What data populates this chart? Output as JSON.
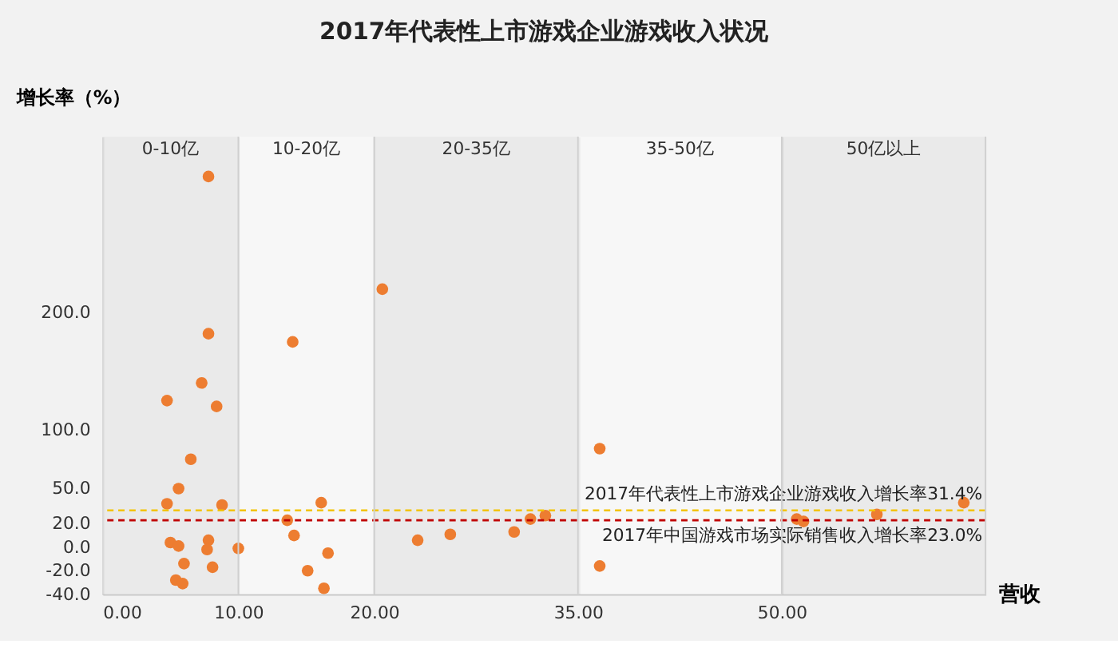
{
  "chart_data": {
    "type": "scatter",
    "title": "2017年代表性上市游戏企业游戏收入状况",
    "xlabel": "营收",
    "ylabel": "增长率（%）",
    "x": [
      7.8,
      7.8,
      4.75,
      7.3,
      8.4,
      6.5,
      5.6,
      4.75,
      8.8,
      14.0,
      16.1,
      13.6,
      14.1,
      20.6,
      5.0,
      5.6,
      7.8,
      7.7,
      10.0,
      6.0,
      8.1,
      5.4,
      5.9,
      16.6,
      15.1,
      16.3,
      36.6,
      63.4,
      57.0,
      51.1,
      51.6,
      31.5,
      32.6,
      30.3,
      25.6,
      23.2,
      36.6
    ],
    "series": [
      {
        "color": "#ed7d31",
        "values": [
          316,
          182,
          125,
          140,
          120,
          75,
          50,
          37,
          36,
          175,
          38,
          23,
          10,
          220,
          4,
          1,
          6,
          -2,
          -1,
          -14,
          -17,
          -28,
          -31,
          -5,
          -20,
          -35,
          84,
          38,
          28,
          24,
          22,
          24,
          27,
          13,
          11,
          6,
          -16
        ]
      }
    ],
    "xlim": [
      0,
      65
    ],
    "xticks": [
      {
        "value": 0,
        "label": "0.00"
      },
      {
        "value": 10,
        "label": "10.00"
      },
      {
        "value": 20,
        "label": "20.00"
      },
      {
        "value": 35,
        "label": "35.00"
      },
      {
        "value": 50,
        "label": "50.00"
      }
    ],
    "ylim": [
      -40,
      350
    ],
    "yticks": [
      {
        "value": -40,
        "label": "-40.0"
      },
      {
        "value": -20,
        "label": "-20.0"
      },
      {
        "value": 0,
        "label": "0.0"
      },
      {
        "value": 20,
        "label": "20.0"
      },
      {
        "value": 50,
        "label": "50.0"
      },
      {
        "value": 100,
        "label": "100.0"
      },
      {
        "value": 200,
        "label": "200.0"
      }
    ],
    "ref_lines": [
      {
        "axis": "y",
        "value": 31.4,
        "label": "2017年代表性上市游戏企业游戏收入增长率31.4%",
        "color": "#f2c300",
        "line_style": "dashed"
      },
      {
        "axis": "y",
        "value": 23.0,
        "label": "2017年中国游戏市场实际销售收入增长率23.0%",
        "color": "#c00000",
        "line_style": "dashed"
      }
    ],
    "bands": [
      {
        "axis": "x",
        "from": 0,
        "to": 10,
        "label": "0-10亿",
        "color": "#e4e4e4"
      },
      {
        "axis": "x",
        "from": 10,
        "to": 20,
        "label": "10-20亿",
        "color": "#fafafa"
      },
      {
        "axis": "x",
        "from": 20,
        "to": 35,
        "label": "20-35亿",
        "color": "#e4e4e4"
      },
      {
        "axis": "x",
        "from": 35,
        "to": 50,
        "label": "35-50亿",
        "color": "#fafafa"
      },
      {
        "axis": "x",
        "from": 50,
        "to": 65,
        "label": "50亿以上",
        "color": "#e4e4e4"
      }
    ],
    "grid": "x",
    "marker": "circle"
  }
}
